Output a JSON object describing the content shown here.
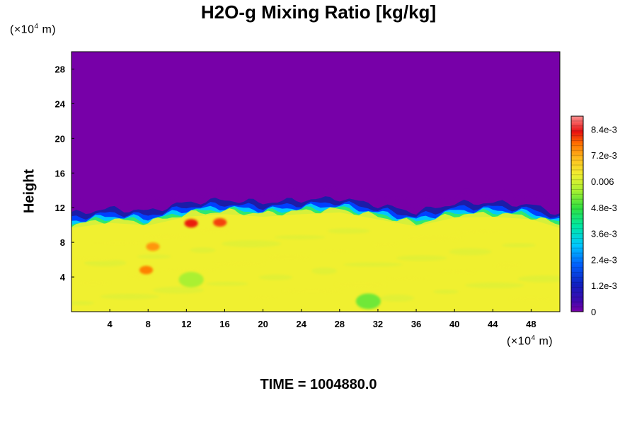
{
  "chart_data": {
    "type": "heatmap",
    "title": "H2O-g Mixing Ratio [kg/kg]",
    "ylabel": "Height",
    "y_unit": {
      "prefix": "(×10",
      "exp": "4",
      "suffix": " m)"
    },
    "x_unit": {
      "prefix": "(×10",
      "exp": "4",
      "suffix": " m)"
    },
    "xlim": [
      0,
      51
    ],
    "ylim": [
      0,
      30
    ],
    "x_ticks": [
      4,
      8,
      12,
      16,
      20,
      24,
      28,
      32,
      36,
      40,
      44,
      48
    ],
    "x_tick_labels": [
      "4",
      "8",
      "12",
      "16",
      "20",
      "24",
      "28",
      "32",
      "36",
      "40",
      "44",
      "48"
    ],
    "y_ticks": [
      4,
      8,
      12,
      16,
      20,
      24,
      28
    ],
    "y_tick_labels": [
      "4",
      "8",
      "12",
      "16",
      "20",
      "24",
      "28"
    ],
    "colorbar": {
      "range": [
        0,
        0.009
      ],
      "ticks": [
        0,
        0.0012,
        0.0024,
        0.0036,
        0.0048,
        0.006,
        0.0072,
        0.0084
      ],
      "tick_labels": [
        "0",
        "1.2e-3",
        "2.4e-3",
        "3.6e-3",
        "4.8e-3",
        "0.006",
        "7.2e-3",
        "8.4e-3"
      ]
    },
    "field_summary": {
      "upper_value": 0,
      "lower_layer_value": 0.0063,
      "moist_layer_top_profile": {
        "x": [
          0,
          4,
          8,
          12,
          16,
          20,
          24,
          28,
          32,
          36,
          40,
          44,
          48,
          51
        ],
        "y": [
          10.0,
          10.6,
          10.3,
          11.3,
          11.6,
          11.3,
          11.6,
          11.8,
          11.0,
          10.2,
          11.2,
          11.3,
          11.0,
          10.0
        ]
      },
      "features": [
        {
          "x": 12.5,
          "y": 10.2,
          "value": 0.0082
        },
        {
          "x": 15.5,
          "y": 10.3,
          "value": 0.008
        },
        {
          "x": 7.8,
          "y": 4.8,
          "value": 0.0076
        },
        {
          "x": 8.5,
          "y": 7.5,
          "value": 0.0074
        },
        {
          "x": 31,
          "y": 1.2,
          "value": 0.0052
        },
        {
          "x": 12.5,
          "y": 3.7,
          "value": 0.0056
        }
      ]
    }
  },
  "colors": {
    "upper": "#7700a8",
    "lower": "#e4f23a",
    "band": [
      "#7700a8",
      "#1c1ca8",
      "#0040ff",
      "#00c8ff",
      "#2ee870",
      "#d6f03a"
    ]
  },
  "footer": {
    "time_label": "TIME = 1004880.0"
  }
}
